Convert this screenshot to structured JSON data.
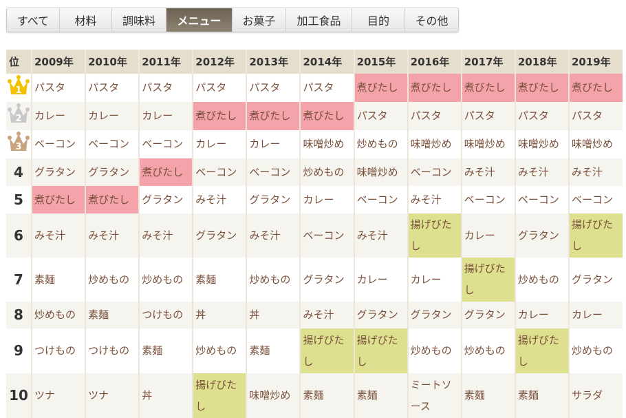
{
  "tabs": [
    {
      "label": "すべて"
    },
    {
      "label": "材料"
    },
    {
      "label": "調味料"
    },
    {
      "label": "メニュー",
      "active": true
    },
    {
      "label": "お菓子"
    },
    {
      "label": "加工食品"
    },
    {
      "label": "目的"
    },
    {
      "label": "その他"
    }
  ],
  "table": {
    "rank_header": "位",
    "years": [
      "2009年",
      "2010年",
      "2011年",
      "2012年",
      "2013年",
      "2014年",
      "2015年",
      "2016年",
      "2017年",
      "2018年",
      "2019年"
    ],
    "highlights": {
      "煮びたし": "#f4a3ab",
      "揚げびたし": "#dde08f"
    },
    "crown_colors": [
      "#f2c200",
      "#c8c8c8",
      "#c9a27e"
    ],
    "rows": [
      {
        "rank": "1",
        "icon": "gold-crown",
        "items": [
          "パスタ",
          "パスタ",
          "パスタ",
          "パスタ",
          "パスタ",
          "パスタ",
          "煮びたし",
          "煮びたし",
          "煮びたし",
          "煮びたし",
          "煮びたし"
        ]
      },
      {
        "rank": "2",
        "icon": "silver-crown",
        "items": [
          "カレー",
          "カレー",
          "カレー",
          "煮びたし",
          "煮びたし",
          "煮びたし",
          "パスタ",
          "パスタ",
          "パスタ",
          "パスタ",
          "パスタ"
        ]
      },
      {
        "rank": "3",
        "icon": "bronze-crown",
        "items": [
          "ベーコン",
          "ベーコン",
          "ベーコン",
          "カレー",
          "カレー",
          "味噌炒め",
          "炒めもの",
          "味噌炒め",
          "味噌炒め",
          "味噌炒め",
          "味噌炒め"
        ]
      },
      {
        "rank": "4",
        "items": [
          "グラタン",
          "グラタン",
          "煮びたし",
          "ベーコン",
          "ベーコン",
          "炒めもの",
          "味噌炒め",
          "ベーコン",
          "みそ汁",
          "みそ汁",
          "みそ汁"
        ]
      },
      {
        "rank": "5",
        "items": [
          "煮びたし",
          "煮びたし",
          "グラタン",
          "みそ汁",
          "グラタン",
          "カレー",
          "ベーコン",
          "みそ汁",
          "ベーコン",
          "ベーコン",
          "ベーコン"
        ]
      },
      {
        "rank": "6",
        "items": [
          "みそ汁",
          "みそ汁",
          "みそ汁",
          "グラタン",
          "みそ汁",
          "ベーコン",
          "みそ汁",
          "揚げびたし",
          "カレー",
          "グラタン",
          "揚げびたし"
        ]
      },
      {
        "rank": "7",
        "items": [
          "素麺",
          "炒めもの",
          "炒めもの",
          "素麺",
          "炒めもの",
          "グラタン",
          "カレー",
          "カレー",
          "揚げびたし",
          "炒めもの",
          "グラタン"
        ]
      },
      {
        "rank": "8",
        "items": [
          "炒めもの",
          "素麺",
          "つけもの",
          "丼",
          "丼",
          "みそ汁",
          "グラタン",
          "グラタン",
          "グラタン",
          "カレー",
          "カレー"
        ]
      },
      {
        "rank": "9",
        "items": [
          "つけもの",
          "つけもの",
          "素麺",
          "炒めもの",
          "素麺",
          "揚げびたし",
          "揚げびたし",
          "炒めもの",
          "炒めもの",
          "揚げびたし",
          "炒めもの"
        ]
      },
      {
        "rank": "10",
        "items": [
          "ツナ",
          "ツナ",
          "丼",
          "揚げびたし",
          "味噌炒め",
          "素麺",
          "素麺",
          "ミートソース",
          "素麺",
          "素麺",
          "サラダ"
        ]
      }
    ]
  }
}
